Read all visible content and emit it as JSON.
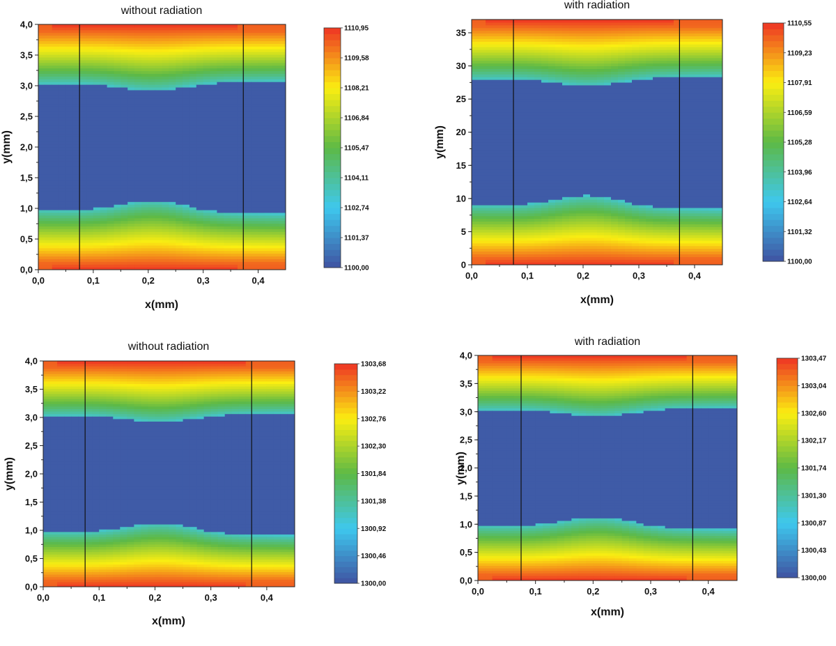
{
  "chart_data": [
    {
      "type": "heatmap",
      "title": "without radiation",
      "xlabel": "x(mm)",
      "ylabel": "y(mm)",
      "xlim": [
        0,
        0.45
      ],
      "ylim": [
        0,
        4.0
      ],
      "xticks": [
        "0,0",
        "0,1",
        "0,2",
        "0,3",
        "0,4"
      ],
      "yticks": [
        "0,0",
        "0,5",
        "1,0",
        "1,5",
        "2,0",
        "2,5",
        "3,0",
        "3,5",
        "4,0"
      ],
      "colorbar": {
        "min": 1100.0,
        "max": 1110.95,
        "labels": [
          "1100,00",
          "1101,37",
          "1102,74",
          "1104,11",
          "1105,47",
          "1106,84",
          "1108,21",
          "1109,58",
          "1110,95"
        ]
      },
      "vlines_x": [
        0.075,
        0.373
      ],
      "cold_zone_y": [
        0.95,
        3.05
      ],
      "edge_max_y_fraction": 1.0
    },
    {
      "type": "heatmap",
      "title": "with radiation",
      "xlabel": "x(mm)",
      "ylabel": "y(mm)",
      "xlim": [
        0,
        0.45
      ],
      "ylim": [
        0,
        37
      ],
      "xticks": [
        "0,0",
        "0,1",
        "0,2",
        "0,3",
        "0,4"
      ],
      "yticks": [
        "0",
        "5",
        "10",
        "15",
        "20",
        "25",
        "30",
        "35"
      ],
      "colorbar": {
        "min": 1100.0,
        "max": 1110.55,
        "labels": [
          "1100,00",
          "1101,32",
          "1102,64",
          "1103,96",
          "1105,28",
          "1106,59",
          "1107,91",
          "1109,23",
          "1110,55"
        ]
      },
      "vlines_x": [
        0.075,
        0.373
      ],
      "cold_zone_y": [
        8.8,
        28.2
      ],
      "edge_max_y_fraction": 1.0
    },
    {
      "type": "heatmap",
      "title": "without radiation",
      "xlabel": "x(mm)",
      "ylabel": "y(mm)",
      "xlim": [
        0,
        0.45
      ],
      "ylim": [
        0,
        4.0
      ],
      "xticks": [
        "0,0",
        "0,1",
        "0,2",
        "0,3",
        "0,4"
      ],
      "yticks": [
        "0,0",
        "0,5",
        "1,0",
        "1,5",
        "2,0",
        "2,5",
        "3,0",
        "3,5",
        "4,0"
      ],
      "colorbar": {
        "min": 1300.0,
        "max": 1303.68,
        "labels": [
          "1300,00",
          "1300,46",
          "1300,92",
          "1301,38",
          "1301,84",
          "1302,30",
          "1302,76",
          "1303,22",
          "1303,68"
        ]
      },
      "vlines_x": [
        0.075,
        0.373
      ],
      "cold_zone_y": [
        0.95,
        3.05
      ],
      "edge_max_y_fraction": 1.0
    },
    {
      "type": "heatmap",
      "title": "with radiation",
      "xlabel": "x(mm)",
      "ylabel": "y(mm)",
      "xlim": [
        0,
        0.45
      ],
      "ylim": [
        0,
        4.0
      ],
      "xticks": [
        "0,0",
        "0,1",
        "0,2",
        "0,3",
        "0,4"
      ],
      "yticks": [
        "0,0",
        "0,5",
        "1,0",
        "1,5",
        "2,0",
        "2,5",
        "3,0",
        "3,5",
        "4,0"
      ],
      "colorbar": {
        "min": 1300.0,
        "max": 1303.47,
        "labels": [
          "1300,00",
          "1300,43",
          "1300,87",
          "1301,30",
          "1301,74",
          "1302,17",
          "1302,60",
          "1303,04",
          "1303,47"
        ]
      },
      "vlines_x": [
        0.075,
        0.373
      ],
      "cold_zone_y": [
        0.95,
        3.05
      ],
      "edge_max_y_fraction": 1.0
    }
  ],
  "colormap": [
    "#3f52a1",
    "#3ec8ee",
    "#5db946",
    "#fbee11",
    "#ee3424"
  ]
}
